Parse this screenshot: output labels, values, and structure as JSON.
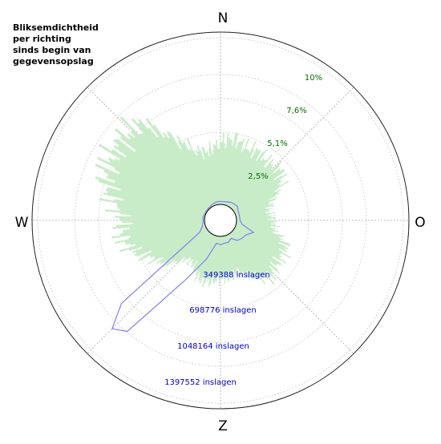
{
  "title": [
    "Bliksemdichtheid",
    "per richting",
    "sinds begin van",
    "gegevensopslag"
  ],
  "colors": {
    "density_fill": "#c8ecc8",
    "strike_line": "#8080ee",
    "percent_label": "#007000",
    "count_label": "#0000cc",
    "grid": "#aaaaaa"
  },
  "chart_data": {
    "type": "polar",
    "title": "Bliksemdichtheid per richting sinds begin van gegevensopslag",
    "directions": [
      "N",
      "O",
      "Z",
      "W"
    ],
    "percent_rings": [
      "2,5%",
      "5,1%",
      "7,6%",
      "10%"
    ],
    "percent_ring_values": [
      2.5,
      5.1,
      7.6,
      10
    ],
    "count_rings": [
      "349388 inslagen",
      "698776 inslagen",
      "1048164 inslagen",
      "1397552 inslagen"
    ],
    "count_ring_values": [
      349388,
      698776,
      1048164,
      1397552
    ],
    "density_series": {
      "unit": "percent",
      "angles_deg": [
        0,
        10,
        20,
        30,
        40,
        50,
        60,
        70,
        80,
        90,
        100,
        110,
        120,
        130,
        140,
        150,
        160,
        170,
        180,
        190,
        200,
        210,
        220,
        230,
        240,
        250,
        260,
        270,
        280,
        290,
        300,
        310,
        320,
        330,
        340,
        350
      ],
      "values": [
        4.3,
        4.6,
        4.2,
        4.3,
        4.0,
        4.3,
        3.7,
        2.6,
        2.2,
        2.6,
        2.6,
        3.7,
        3.8,
        3.8,
        4.1,
        3.4,
        2.6,
        2.9,
        2.9,
        3.2,
        3.2,
        2.5,
        2.3,
        3.5,
        4.2,
        5.2,
        5.8,
        5.6,
        6.4,
        7.3,
        7.6,
        7.6,
        7.6,
        5.4,
        4.0,
        3.7
      ]
    },
    "strike_series": {
      "unit": "inslagen",
      "angles_deg": [
        0,
        10,
        20,
        30,
        40,
        50,
        60,
        70,
        80,
        90,
        100,
        110,
        120,
        130,
        140,
        150,
        160,
        170,
        180,
        190,
        200,
        210,
        220,
        225,
        230,
        240,
        250,
        260,
        270,
        280,
        290,
        300,
        310,
        320,
        330,
        340,
        350
      ],
      "values": [
        25000,
        25000,
        30000,
        40000,
        45000,
        50000,
        35000,
        30000,
        28000,
        30000,
        50000,
        160000,
        110000,
        100000,
        85000,
        40000,
        60000,
        60000,
        70000,
        60000,
        210000,
        430000,
        1080000,
        1150000,
        950000,
        70000,
        30000,
        15000,
        10000,
        15000,
        10000,
        8000,
        10000,
        10000,
        15000,
        20000,
        25000
      ]
    }
  }
}
